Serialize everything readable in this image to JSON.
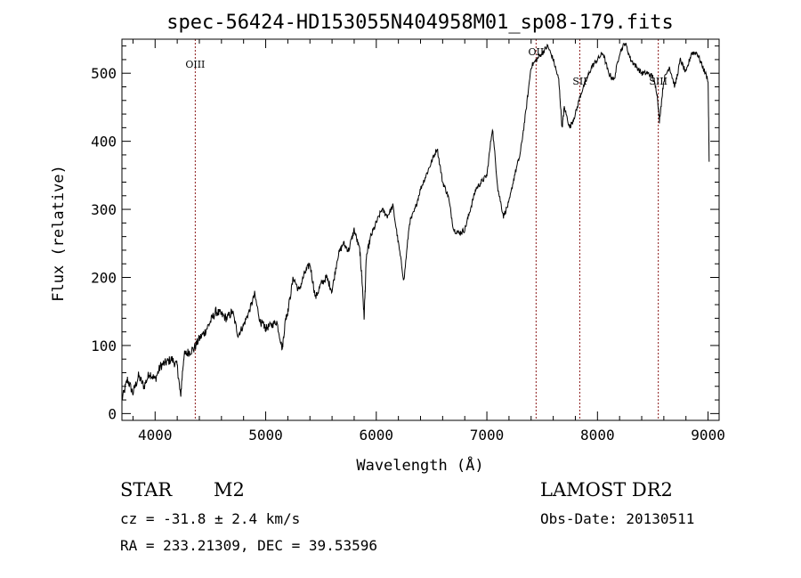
{
  "chart_data": {
    "type": "line",
    "title": "spec-56424-HD153055N404958M01_sp08-179.fits",
    "xlabel": "Wavelength (Å)",
    "ylabel": "Flux (relative)",
    "xlim": [
      3700,
      9100
    ],
    "ylim": [
      -10,
      550
    ],
    "x_ticks": [
      4000,
      5000,
      6000,
      7000,
      8000,
      9000
    ],
    "y_ticks": [
      0,
      100,
      200,
      300,
      400,
      500
    ],
    "grid": false,
    "line_color": "#000000",
    "marker_color": "#8b1a1a",
    "series": [
      {
        "x": [
          3700,
          3750,
          3800,
          3850,
          3900,
          3950,
          4000,
          4050,
          4100,
          4150,
          4200,
          4230,
          4260,
          4300,
          4350,
          4400,
          4450,
          4500,
          4550,
          4600,
          4650,
          4700,
          4750,
          4800,
          4850,
          4900,
          4950,
          4980,
          5000,
          5050,
          5100,
          5150,
          5180,
          5200,
          5250,
          5300,
          5350,
          5400,
          5450,
          5500,
          5550,
          5600,
          5650,
          5700,
          5750,
          5800,
          5850,
          5870,
          5890,
          5910,
          5950,
          6000,
          6050,
          6100,
          6150,
          6200,
          6250,
          6300,
          6350,
          6400,
          6450,
          6500,
          6550,
          6600,
          6650,
          6700,
          6750,
          6800,
          6850,
          6900,
          6950,
          7000,
          7050,
          7100,
          7150,
          7200,
          7250,
          7300,
          7350,
          7400,
          7450,
          7500,
          7550,
          7600,
          7650,
          7680,
          7700,
          7750,
          7800,
          7850,
          7900,
          7950,
          8000,
          8050,
          8100,
          8150,
          8200,
          8250,
          8300,
          8350,
          8400,
          8450,
          8500,
          8540,
          8560,
          8600,
          8650,
          8700,
          8750,
          8800,
          8850,
          8900,
          8950,
          9000,
          9010
        ],
        "y": [
          20,
          50,
          30,
          55,
          40,
          60,
          50,
          70,
          75,
          80,
          70,
          25,
          85,
          90,
          95,
          110,
          120,
          135,
          150,
          145,
          140,
          150,
          115,
          130,
          150,
          175,
          135,
          130,
          125,
          130,
          135,
          95,
          140,
          150,
          200,
          180,
          205,
          220,
          170,
          190,
          200,
          180,
          230,
          250,
          240,
          270,
          240,
          200,
          140,
          230,
          260,
          280,
          300,
          290,
          305,
          250,
          195,
          280,
          300,
          330,
          350,
          370,
          390,
          340,
          320,
          270,
          265,
          270,
          300,
          330,
          340,
          350,
          420,
          330,
          290,
          310,
          350,
          380,
          440,
          510,
          520,
          530,
          540,
          520,
          490,
          420,
          450,
          420,
          440,
          470,
          490,
          510,
          520,
          530,
          500,
          490,
          530,
          545,
          520,
          510,
          500,
          500,
          495,
          470,
          430,
          490,
          510,
          480,
          520,
          500,
          530,
          530,
          510,
          490,
          370
        ]
      }
    ],
    "spectral_lines": [
      {
        "label": "OIII",
        "x": 4363
      },
      {
        "label": "OII",
        "x": 7445
      },
      {
        "label": "SII",
        "x": 7840
      },
      {
        "label": "SIII",
        "x": 8550
      }
    ]
  },
  "info": {
    "object_class": "STAR",
    "subclass": "M2",
    "survey": "LAMOST DR2",
    "cz": "cz = -31.8 ± 2.4 km/s",
    "obs_date": "Obs-Date: 20130511",
    "coords": "RA = 233.21309, DEC =  39.53596"
  }
}
